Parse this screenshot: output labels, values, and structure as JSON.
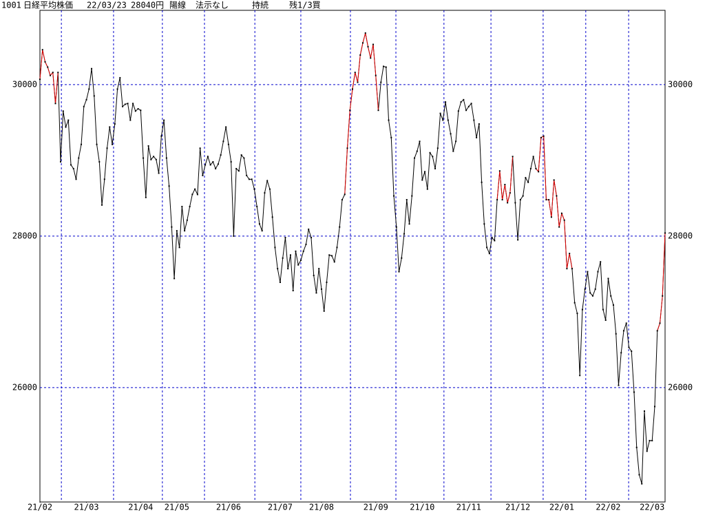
{
  "header": {
    "code": "1001",
    "name": "日経平均株価",
    "date": "22/03/23",
    "price": "28040円",
    "candle": "陽線",
    "signal": "法示なし",
    "status": "持続",
    "note": "残1/3買"
  },
  "chart_data": {
    "type": "line",
    "ylim": [
      24490,
      30980
    ],
    "yticks": [
      26000,
      28000,
      30000
    ],
    "xlim": [
      0,
      242
    ],
    "xticks": [
      {
        "value": 0,
        "label": "21/02"
      },
      {
        "value": 18,
        "label": "21/03"
      },
      {
        "value": 39,
        "label": "21/04"
      },
      {
        "value": 53,
        "label": "21/05"
      },
      {
        "value": 73,
        "label": "21/06"
      },
      {
        "value": 93,
        "label": "21/07"
      },
      {
        "value": 109,
        "label": "21/08"
      },
      {
        "value": 130,
        "label": "21/09"
      },
      {
        "value": 148,
        "label": "21/10"
      },
      {
        "value": 166,
        "label": "21/11"
      },
      {
        "value": 185,
        "label": "21/12"
      },
      {
        "value": 202,
        "label": "22/01"
      },
      {
        "value": 220,
        "label": "22/02"
      },
      {
        "value": 237,
        "label": "22/03"
      }
    ],
    "xgrid": [
      8.3,
      28.5,
      47.4,
      63.7,
      83.2,
      101,
      120.2,
      137.8,
      156.4,
      174.6,
      194.8,
      211.3,
      227.9
    ],
    "grid": true,
    "color": "#000000",
    "highlight_color": "#e00000",
    "highlight_ranges": [
      [
        0,
        7
      ],
      [
        118,
        131
      ],
      [
        177,
        183
      ],
      [
        192,
        206
      ],
      [
        239,
        242
      ]
    ],
    "values": [
      30070,
      30460,
      30300,
      30230,
      30120,
      30160,
      29750,
      30160,
      28980,
      29650,
      29440,
      29530,
      28940,
      28890,
      28750,
      29030,
      29210,
      29710,
      29800,
      29940,
      30210,
      29850,
      29210,
      28980,
      28410,
      28750,
      29160,
      29440,
      29210,
      29480,
      29940,
      30090,
      29710,
      29740,
      29750,
      29530,
      29750,
      29650,
      29680,
      29660,
      29030,
      28510,
      29190,
      29010,
      29050,
      29010,
      28830,
      29320,
      29530,
      29030,
      28660,
      28120,
      27440,
      28070,
      27850,
      28390,
      28070,
      28210,
      28390,
      28550,
      28620,
      28550,
      29160,
      28800,
      28940,
      29050,
      28940,
      28980,
      28890,
      28950,
      29070,
      29250,
      29440,
      29210,
      28980,
      28000,
      28890,
      28860,
      29070,
      29030,
      28800,
      28750,
      28750,
      28620,
      28390,
      28160,
      28070,
      28570,
      28730,
      28620,
      28250,
      27850,
      27570,
      27390,
      27710,
      27980,
      27570,
      27750,
      27280,
      27800,
      27620,
      27680,
      27800,
      27890,
      28090,
      27980,
      27480,
      27250,
      27570,
      27300,
      27010,
      27390,
      27750,
      27740,
      27660,
      27850,
      28120,
      28480,
      28550,
      29160,
      29660,
      29940,
      30160,
      30030,
      30390,
      30550,
      30680,
      30500,
      30350,
      30530,
      30120,
      29660,
      30030,
      30240,
      30230,
      29530,
      29300,
      28530,
      28120,
      27530,
      27710,
      28030,
      28480,
      28160,
      28530,
      29030,
      29120,
      29250,
      28740,
      28850,
      28620,
      29100,
      29050,
      28890,
      29160,
      29620,
      29530,
      29770,
      29530,
      29350,
      29120,
      29250,
      29650,
      29770,
      29800,
      29660,
      29710,
      29750,
      29530,
      29300,
      29480,
      28710,
      28160,
      27850,
      27770,
      27980,
      27940,
      28480,
      28860,
      28480,
      28680,
      28440,
      28570,
      29050,
      28440,
      27950,
      28480,
      28530,
      28770,
      28710,
      28890,
      29050,
      28890,
      28850,
      29300,
      29320,
      28480,
      28480,
      28250,
      28740,
      28530,
      28120,
      28300,
      28210,
      27570,
      27770,
      27570,
      27120,
      26980,
      26160,
      27030,
      27300,
      27530,
      27250,
      27210,
      27300,
      27530,
      27660,
      27030,
      26890,
      27440,
      27210,
      27090,
      26710,
      26030,
      26460,
      26750,
      26850,
      26530,
      26480,
      25940,
      25210,
      24850,
      24730,
      25690,
      25160,
      25300,
      25300,
      25750,
      26750,
      26850,
      27210,
      28040
    ]
  }
}
